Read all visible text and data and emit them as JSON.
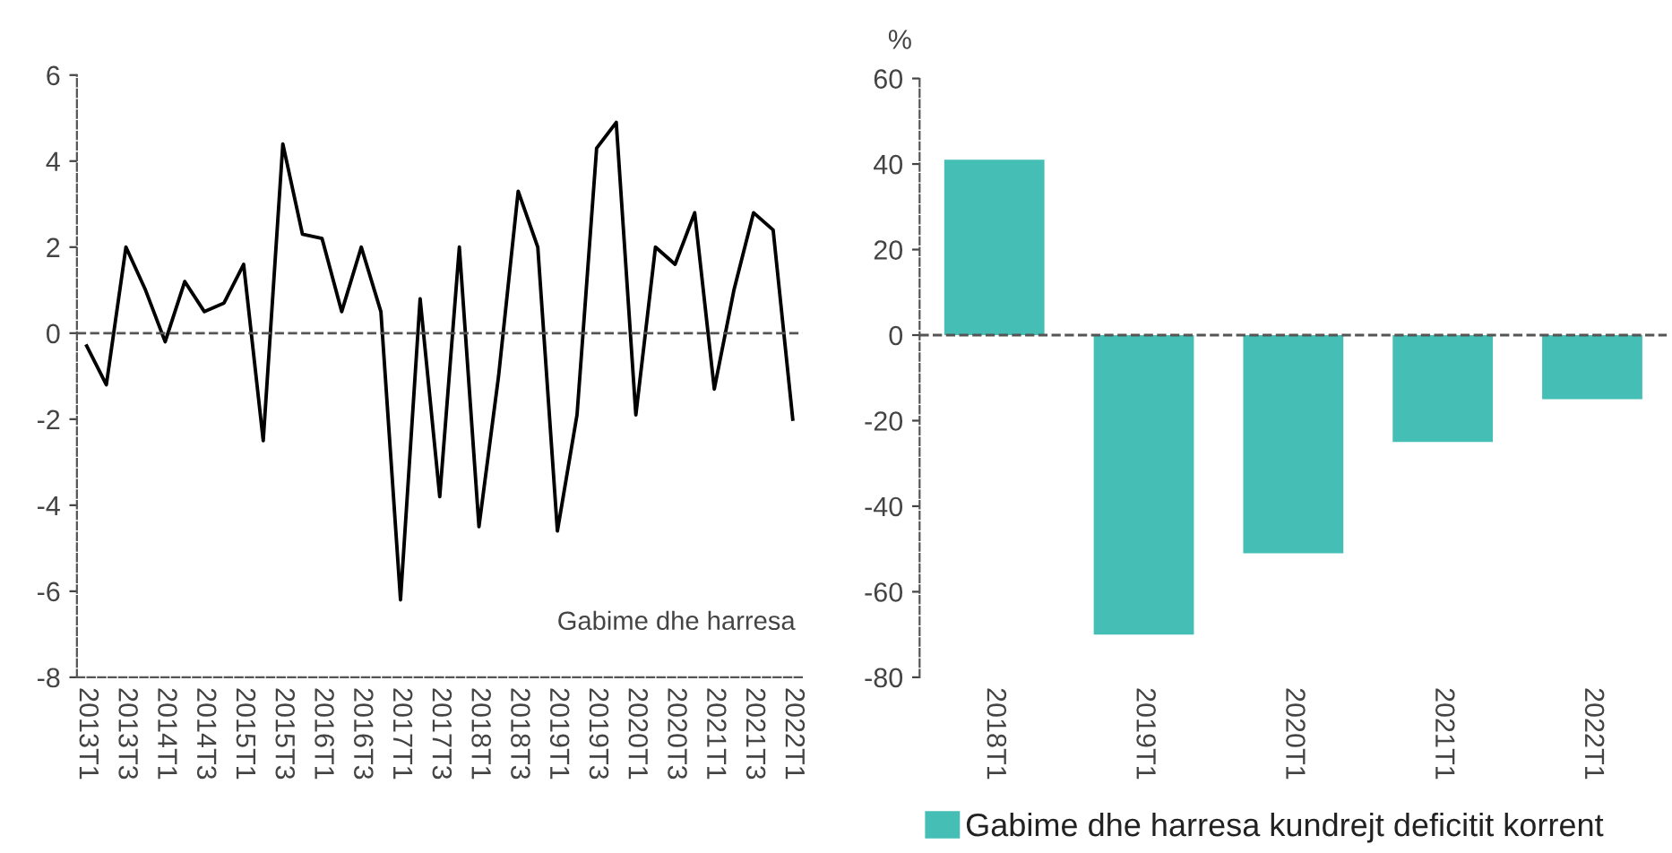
{
  "chart_data": [
    {
      "type": "line",
      "categories": [
        "2013T1",
        null,
        "2013T3",
        null,
        "2014T1",
        null,
        "2014T3",
        null,
        "2015T1",
        null,
        "2015T3",
        null,
        "2016T1",
        null,
        "2016T3",
        null,
        "2017T1",
        null,
        "2017T3",
        null,
        "2018T1",
        null,
        "2018T3",
        null,
        "2019T1",
        null,
        "2019T3",
        null,
        "2020T1",
        null,
        "2020T3",
        null,
        "2021T1",
        null,
        "2021T3",
        null,
        "2022T1"
      ],
      "series": [
        {
          "name": "Gabime dhe harresa",
          "color": "#000000",
          "values": [
            -0.3,
            -1.2,
            2.0,
            1.0,
            -0.2,
            1.2,
            0.5,
            0.7,
            1.6,
            -2.5,
            4.4,
            2.3,
            2.2,
            0.5,
            2.0,
            0.5,
            -6.2,
            0.8,
            -3.8,
            2.0,
            -4.5,
            -1.0,
            3.3,
            2.0,
            -4.6,
            -1.9,
            4.3,
            4.9,
            -1.9,
            2.0,
            1.6,
            2.8,
            -1.3,
            1.0,
            2.8,
            2.4,
            -2.0
          ]
        }
      ],
      "ylim": [
        -8,
        6
      ],
      "yticks": [
        -8,
        -6,
        -4,
        -2,
        0,
        2,
        4,
        6
      ],
      "ref_lines": [
        {
          "axis": "y",
          "value": 0,
          "color": "#555555",
          "line_style": "dashed"
        }
      ],
      "grid": false,
      "legend": false
    },
    {
      "type": "bar",
      "ylabel": "%",
      "categories": [
        "2018T1",
        "2019T1",
        "2020T1",
        "2021T1",
        "2022T1"
      ],
      "series": [
        {
          "name": "Gabime dhe harresa kundrejt deficitit korrent",
          "color": "#45bfb5",
          "values": [
            41,
            -70,
            -51,
            -25,
            -15
          ]
        }
      ],
      "ylim": [
        -80,
        60
      ],
      "yticks": [
        -80,
        -60,
        -40,
        -20,
        0,
        20,
        40,
        60
      ],
      "ref_lines": [
        {
          "axis": "y",
          "value": 0,
          "color": "#555555",
          "line_style": "dashed"
        }
      ],
      "grid": false,
      "legend": "bottom"
    }
  ]
}
